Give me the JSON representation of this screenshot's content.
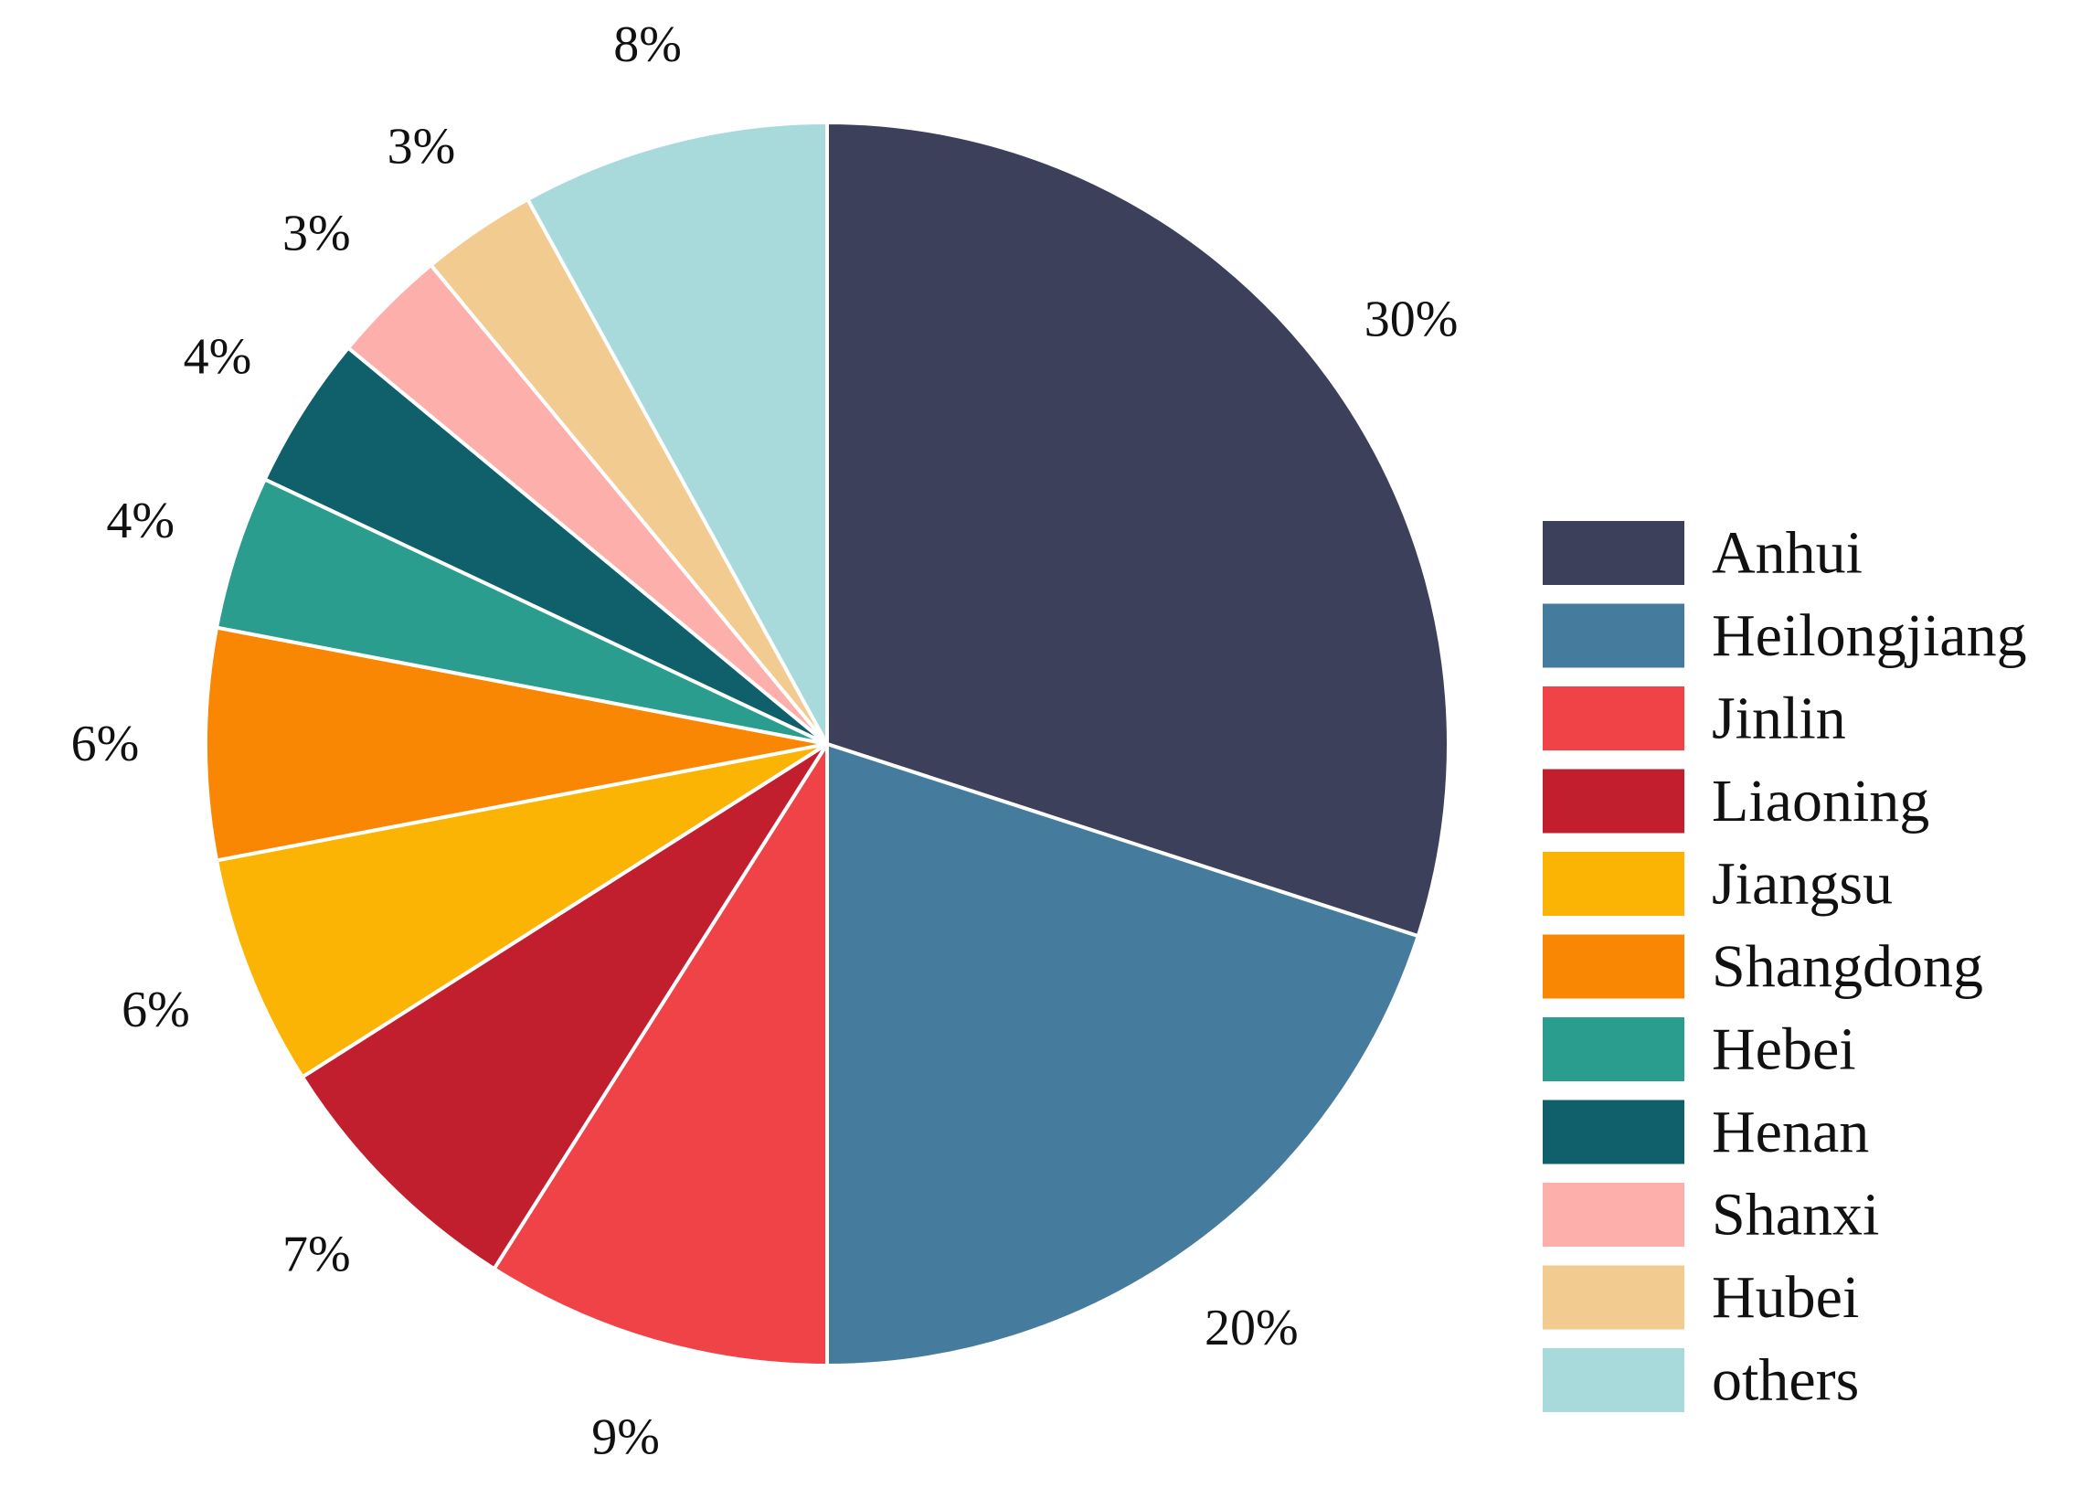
{
  "chart_data": {
    "type": "pie",
    "title": "",
    "categories": [
      "Anhui",
      "Heilongjiang",
      "Jinlin",
      "Liaoning",
      "Jiangsu",
      "Shangdong",
      "Hebei",
      "Henan",
      "Shanxi",
      "Hubei",
      "others"
    ],
    "values": [
      30,
      20,
      9,
      7,
      6,
      6,
      4,
      4,
      3,
      3,
      8
    ],
    "labels": [
      "30%",
      "20%",
      "9%",
      "7%",
      "6%",
      "6%",
      "4%",
      "4%",
      "3%",
      "3%",
      "8%"
    ],
    "colors": [
      "#3d405b",
      "#457b9d",
      "#ef4347",
      "#c11f2e",
      "#fcb404",
      "#f98703",
      "#2a9d8f",
      "#10606b",
      "#fdb0ab",
      "#f1cb90",
      "#a8dadc"
    ],
    "legend_position": "right",
    "start": "top, clockwise"
  }
}
